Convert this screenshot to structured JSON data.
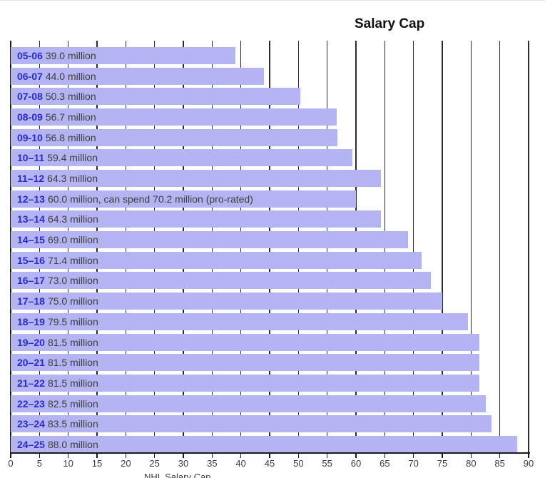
{
  "chart_data": {
    "type": "bar",
    "orientation": "horizontal",
    "title": "Salary Cap",
    "xlabel": "NHL Salary Cap",
    "xlim": [
      0,
      90
    ],
    "x_ticks": [
      0,
      5,
      10,
      15,
      20,
      25,
      30,
      35,
      40,
      45,
      50,
      55,
      60,
      65,
      70,
      75,
      80,
      85,
      90
    ],
    "grid": "vertical",
    "legend": "none",
    "categories": [
      "05-06",
      "06-07",
      "07-08",
      "08-09",
      "09-10",
      "10–11",
      "11–12",
      "12–13",
      "13–14",
      "14–15",
      "15–16",
      "16–17",
      "17–18",
      "18–19",
      "19–20",
      "20–21",
      "21–22",
      "22–23",
      "23–24",
      "24–25"
    ],
    "values": [
      39.0,
      44.0,
      50.3,
      56.7,
      56.8,
      59.4,
      64.3,
      60.0,
      64.3,
      69.0,
      71.4,
      73.0,
      75.0,
      79.5,
      81.5,
      81.5,
      81.5,
      82.5,
      83.5,
      88.0
    ],
    "bar_labels": [
      "39.0 million",
      "44.0 million",
      "50.3 million",
      "56.7 million",
      "56.8 million",
      "59.4 million",
      "64.3 million",
      "60.0 million, can spend 70.2 million (pro-rated)",
      "64.3 million",
      "69.0 million",
      "71.4 million",
      "73.0 million",
      "75.0 million",
      "79.5 million",
      "81.5 million",
      "81.5 million",
      "81.5 million",
      "82.5 million",
      "83.5 million",
      "88.0 million"
    ],
    "colors": {
      "bar_fill": "#b4b4f2",
      "season_label": "#2a2ad0",
      "value_label": "#3d3d3d",
      "gridline": "#2b2b2b",
      "axis": "#1a1a1a",
      "tick_label": "#3d3d3d",
      "title": "#111111"
    }
  }
}
